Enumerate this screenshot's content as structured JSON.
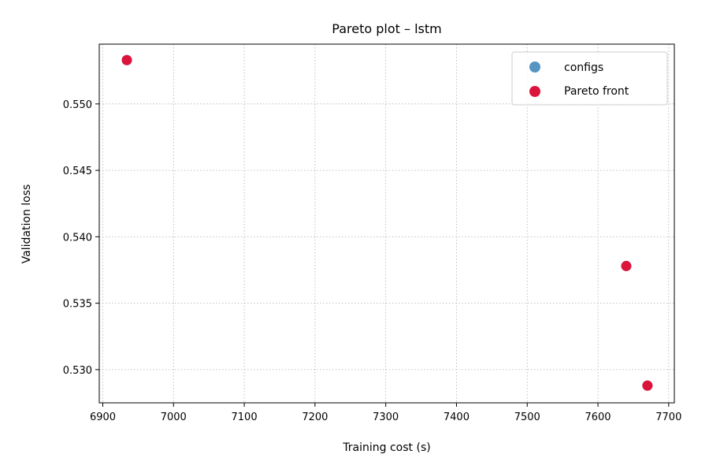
{
  "chart_data": {
    "type": "scatter",
    "title": "Pareto plot – lstm",
    "xlabel": "Training cost (s)",
    "ylabel": "Validation loss",
    "xlim": [
      6895,
      7708
    ],
    "ylim": [
      0.5275,
      0.5545
    ],
    "xticks": [
      6900,
      7000,
      7100,
      7200,
      7300,
      7400,
      7500,
      7600,
      7700
    ],
    "yticks": [
      0.53,
      0.535,
      0.54,
      0.545,
      0.55
    ],
    "xtick_labels": [
      "6900",
      "7000",
      "7100",
      "7200",
      "7300",
      "7400",
      "7500",
      "7600",
      "7700"
    ],
    "ytick_labels": [
      "0.530",
      "0.535",
      "0.540",
      "0.545",
      "0.550"
    ],
    "grid": true,
    "legend_position": "top-right",
    "series": [
      {
        "name": "configs",
        "color": "#5694c3",
        "points": [
          {
            "x": 6934,
            "y": 0.5533
          },
          {
            "x": 7640,
            "y": 0.5378
          },
          {
            "x": 7670,
            "y": 0.5288
          }
        ]
      },
      {
        "name": "Pareto front",
        "color": "#dc143c",
        "points": [
          {
            "x": 6934,
            "y": 0.5533
          },
          {
            "x": 7640,
            "y": 0.5378
          },
          {
            "x": 7670,
            "y": 0.5288
          }
        ]
      }
    ]
  }
}
